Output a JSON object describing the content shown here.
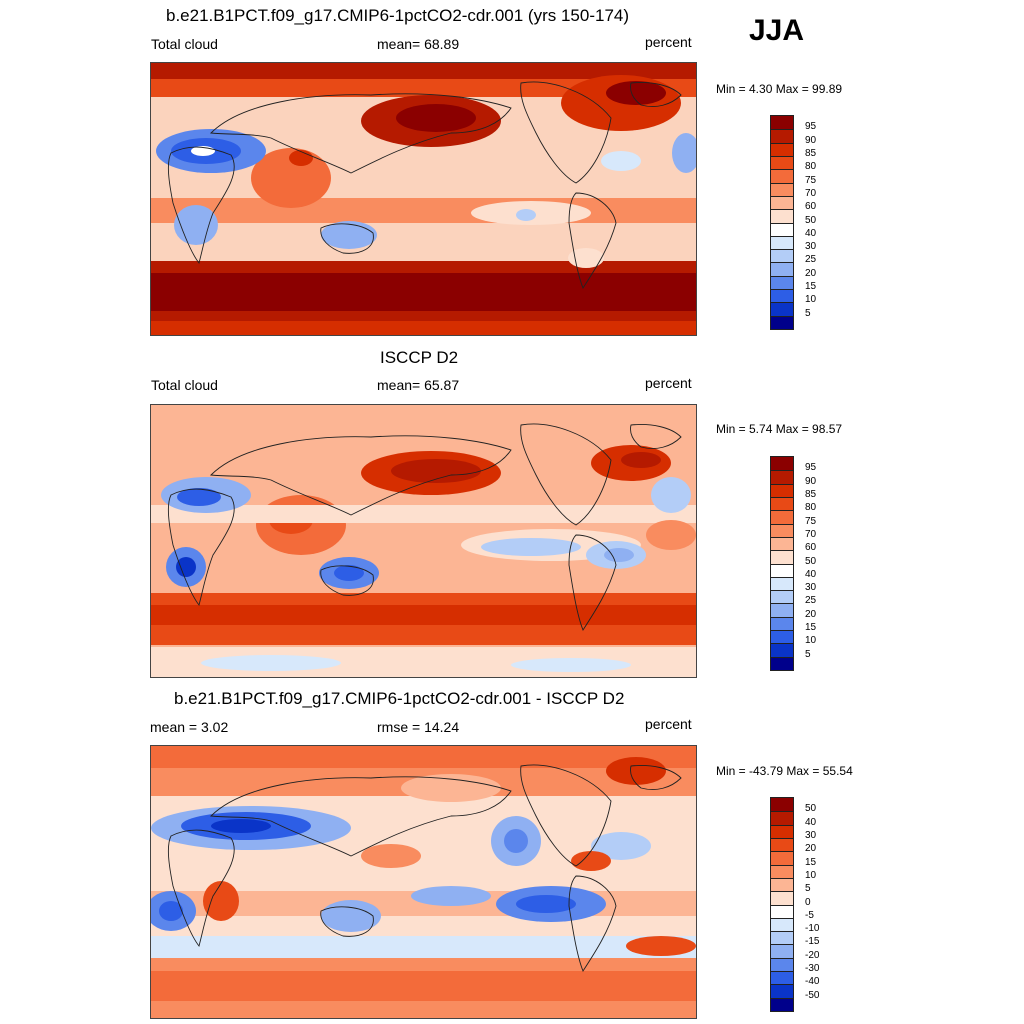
{
  "season": "JJA",
  "panels": [
    {
      "title": "b.e21.B1PCT.f09_g17.CMIP6-1pctCO2-cdr.001 (yrs 150-174)",
      "left_label": "Total cloud",
      "center_label": "mean=  68.89",
      "right_label": "percent",
      "minmax": "Min =   4.30 Max =  99.89"
    },
    {
      "title": "ISCCP D2",
      "left_label": "Total cloud",
      "center_label": "mean=  65.87",
      "right_label": "percent",
      "minmax": "Min =   5.74 Max =  98.57"
    },
    {
      "title": "b.e21.B1PCT.f09_g17.CMIP6-1pctCO2-cdr.001 - ISCCP D2",
      "left_label": "mean =   3.02",
      "center_label": "rmse =  14.24",
      "right_label": "percent",
      "minmax": "Min = -43.79 Max =  55.54"
    }
  ],
  "chart_data": [
    {
      "type": "heatmap",
      "title": "b.e21.B1PCT.f09_g17.CMIP6-1pctCO2-cdr.001 (yrs 150-174)",
      "variable": "Total cloud",
      "units": "percent",
      "mean": 68.89,
      "min": 4.3,
      "max": 99.89,
      "colorbar_levels": [
        5,
        10,
        15,
        20,
        25,
        30,
        40,
        50,
        60,
        70,
        75,
        80,
        85,
        90,
        95
      ],
      "colorbar_labels": [
        "95",
        "90",
        "85",
        "80",
        "75",
        "70",
        "60",
        "50",
        "40",
        "30",
        "25",
        "20",
        "15",
        "10",
        "5"
      ]
    },
    {
      "type": "heatmap",
      "title": "ISCCP D2",
      "variable": "Total cloud",
      "units": "percent",
      "mean": 65.87,
      "min": 5.74,
      "max": 98.57,
      "colorbar_levels": [
        5,
        10,
        15,
        20,
        25,
        30,
        40,
        50,
        60,
        70,
        75,
        80,
        85,
        90,
        95
      ],
      "colorbar_labels": [
        "95",
        "90",
        "85",
        "80",
        "75",
        "70",
        "60",
        "50",
        "40",
        "30",
        "25",
        "20",
        "15",
        "10",
        "5"
      ]
    },
    {
      "type": "heatmap",
      "title": "b.e21.B1PCT.f09_g17.CMIP6-1pctCO2-cdr.001 - ISCCP D2",
      "units": "percent",
      "mean": 3.02,
      "rmse": 14.24,
      "min": -43.79,
      "max": 55.54,
      "colorbar_levels": [
        -50,
        -40,
        -30,
        -20,
        -15,
        -10,
        -5,
        0,
        5,
        10,
        15,
        20,
        30,
        40,
        50
      ],
      "colorbar_labels": [
        "50",
        "40",
        "30",
        "20",
        "15",
        "10",
        "5",
        "0",
        "-5",
        "-10",
        "-15",
        "-20",
        "-30",
        "-40",
        "-50"
      ]
    }
  ],
  "colors": {
    "palette_16": [
      "#8b0000",
      "#b51a00",
      "#d62e00",
      "#e84a16",
      "#f36b3a",
      "#f98c5f",
      "#fcb594",
      "#fde0cf",
      "#ffffff",
      "#d7e8fb",
      "#b3cdf7",
      "#8fb0f2",
      "#5b86ec",
      "#2d5ee6",
      "#0a34c8",
      "#00008b"
    ]
  }
}
